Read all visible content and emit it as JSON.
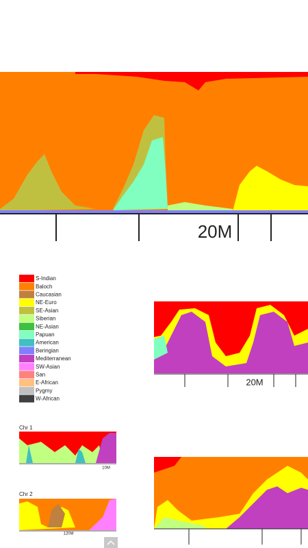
{
  "main_chart": {
    "tick_label": "20M"
  },
  "legend": {
    "items": [
      {
        "label": "S-Indian",
        "color": "#ff0000"
      },
      {
        "label": "Baloch",
        "color": "#ff8000"
      },
      {
        "label": "Caucasian",
        "color": "#c08040"
      },
      {
        "label": "NE-Euro",
        "color": "#ffff00"
      },
      {
        "label": "SE-Asian",
        "color": "#c0c040"
      },
      {
        "label": "Siberian",
        "color": "#c0ff80"
      },
      {
        "label": "NE-Asian",
        "color": "#40c040"
      },
      {
        "label": "Papuan",
        "color": "#80ffc0"
      },
      {
        "label": "American",
        "color": "#40c0c0"
      },
      {
        "label": "Beringian",
        "color": "#8080ff"
      },
      {
        "label": "Mediterranean",
        "color": "#c040c0"
      },
      {
        "label": "SW-Asian",
        "color": "#ff80ff"
      },
      {
        "label": "San",
        "color": "#ff8080"
      },
      {
        "label": "E-African",
        "color": "#ffc080"
      },
      {
        "label": "Pygmy",
        "color": "#c0c0c0"
      },
      {
        "label": "W-African",
        "color": "#404040"
      }
    ]
  },
  "right_top_chart": {
    "tick_label": "20M"
  },
  "chr1": {
    "title": "Chr 1",
    "tick_label": "10M"
  },
  "chr2": {
    "title": "Chr 2",
    "tick_label": "120M"
  }
}
